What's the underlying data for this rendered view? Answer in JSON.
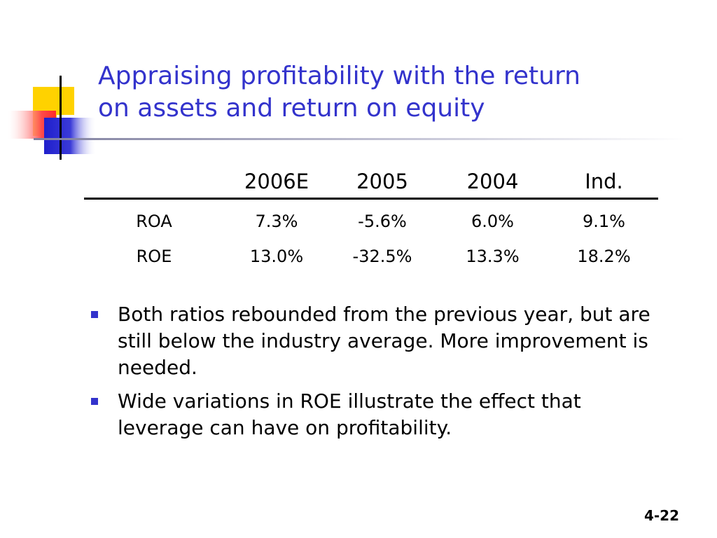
{
  "slide": {
    "title_lines": [
      "Appraising profitability with the return",
      "on assets and return on equity"
    ],
    "table": {
      "headers": [
        "",
        "2006E",
        "2005",
        "2004",
        "Ind."
      ],
      "rows": [
        [
          "ROA",
          "7.3%",
          "-5.6%",
          "6.0%",
          "9.1%"
        ],
        [
          "ROE",
          "13.0%",
          "-32.5%",
          "13.3%",
          "18.2%"
        ]
      ]
    },
    "bullets": [
      "Both ratios rebounded from the previous year, but are still below the industry average.  More improvement is needed.",
      "Wide variations in ROE illustrate the effect that leverage can have on profitability."
    ],
    "page_number": "4-22"
  },
  "colors": {
    "title": "#3333cc",
    "bullet": "#3333cc",
    "accent_yellow": "#ffd200",
    "accent_red": "#ff3333",
    "accent_blue": "#2222cc"
  }
}
